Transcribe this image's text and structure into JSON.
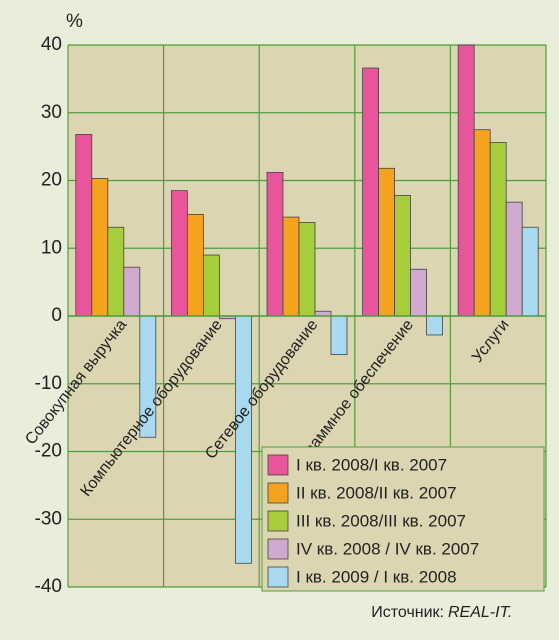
{
  "chart_data": {
    "type": "bar",
    "y_unit": "%",
    "categories": [
      "Совокупная выручка",
      "Компьютерное оборудование",
      "Сетевое оборудование",
      "Программное обеспечение",
      "Услуги"
    ],
    "series": [
      {
        "name": "I кв. 2008/I кв. 2007",
        "color": "#e8559a",
        "values": [
          26.8,
          18.5,
          21.2,
          36.6,
          40
        ]
      },
      {
        "name": "II кв. 2008/II кв. 2007",
        "color": "#f5a31e",
        "values": [
          20.3,
          15,
          14.6,
          21.8,
          27.5
        ]
      },
      {
        "name": "III кв. 2008/III кв. 2007",
        "color": "#a7cd3c",
        "values": [
          13.1,
          9,
          13.8,
          17.8,
          25.6
        ]
      },
      {
        "name": "IV кв. 2008 / IV кв. 2007",
        "color": "#d0a9cf",
        "values": [
          7.2,
          -0.4,
          0.7,
          6.9,
          16.8
        ]
      },
      {
        "name": "I кв. 2009 / I кв. 2008",
        "color": "#a8d9ef",
        "values": [
          -17.9,
          -36.5,
          -5.7,
          -2.8,
          13.1
        ]
      }
    ],
    "ylim": [
      -40,
      40
    ],
    "yticks": [
      -40,
      -30,
      -20,
      -10,
      0,
      10,
      20,
      30,
      40
    ],
    "grid": true,
    "legend_position": "lower right",
    "source_label": "Источник:",
    "source_name": "REAL-IT."
  }
}
